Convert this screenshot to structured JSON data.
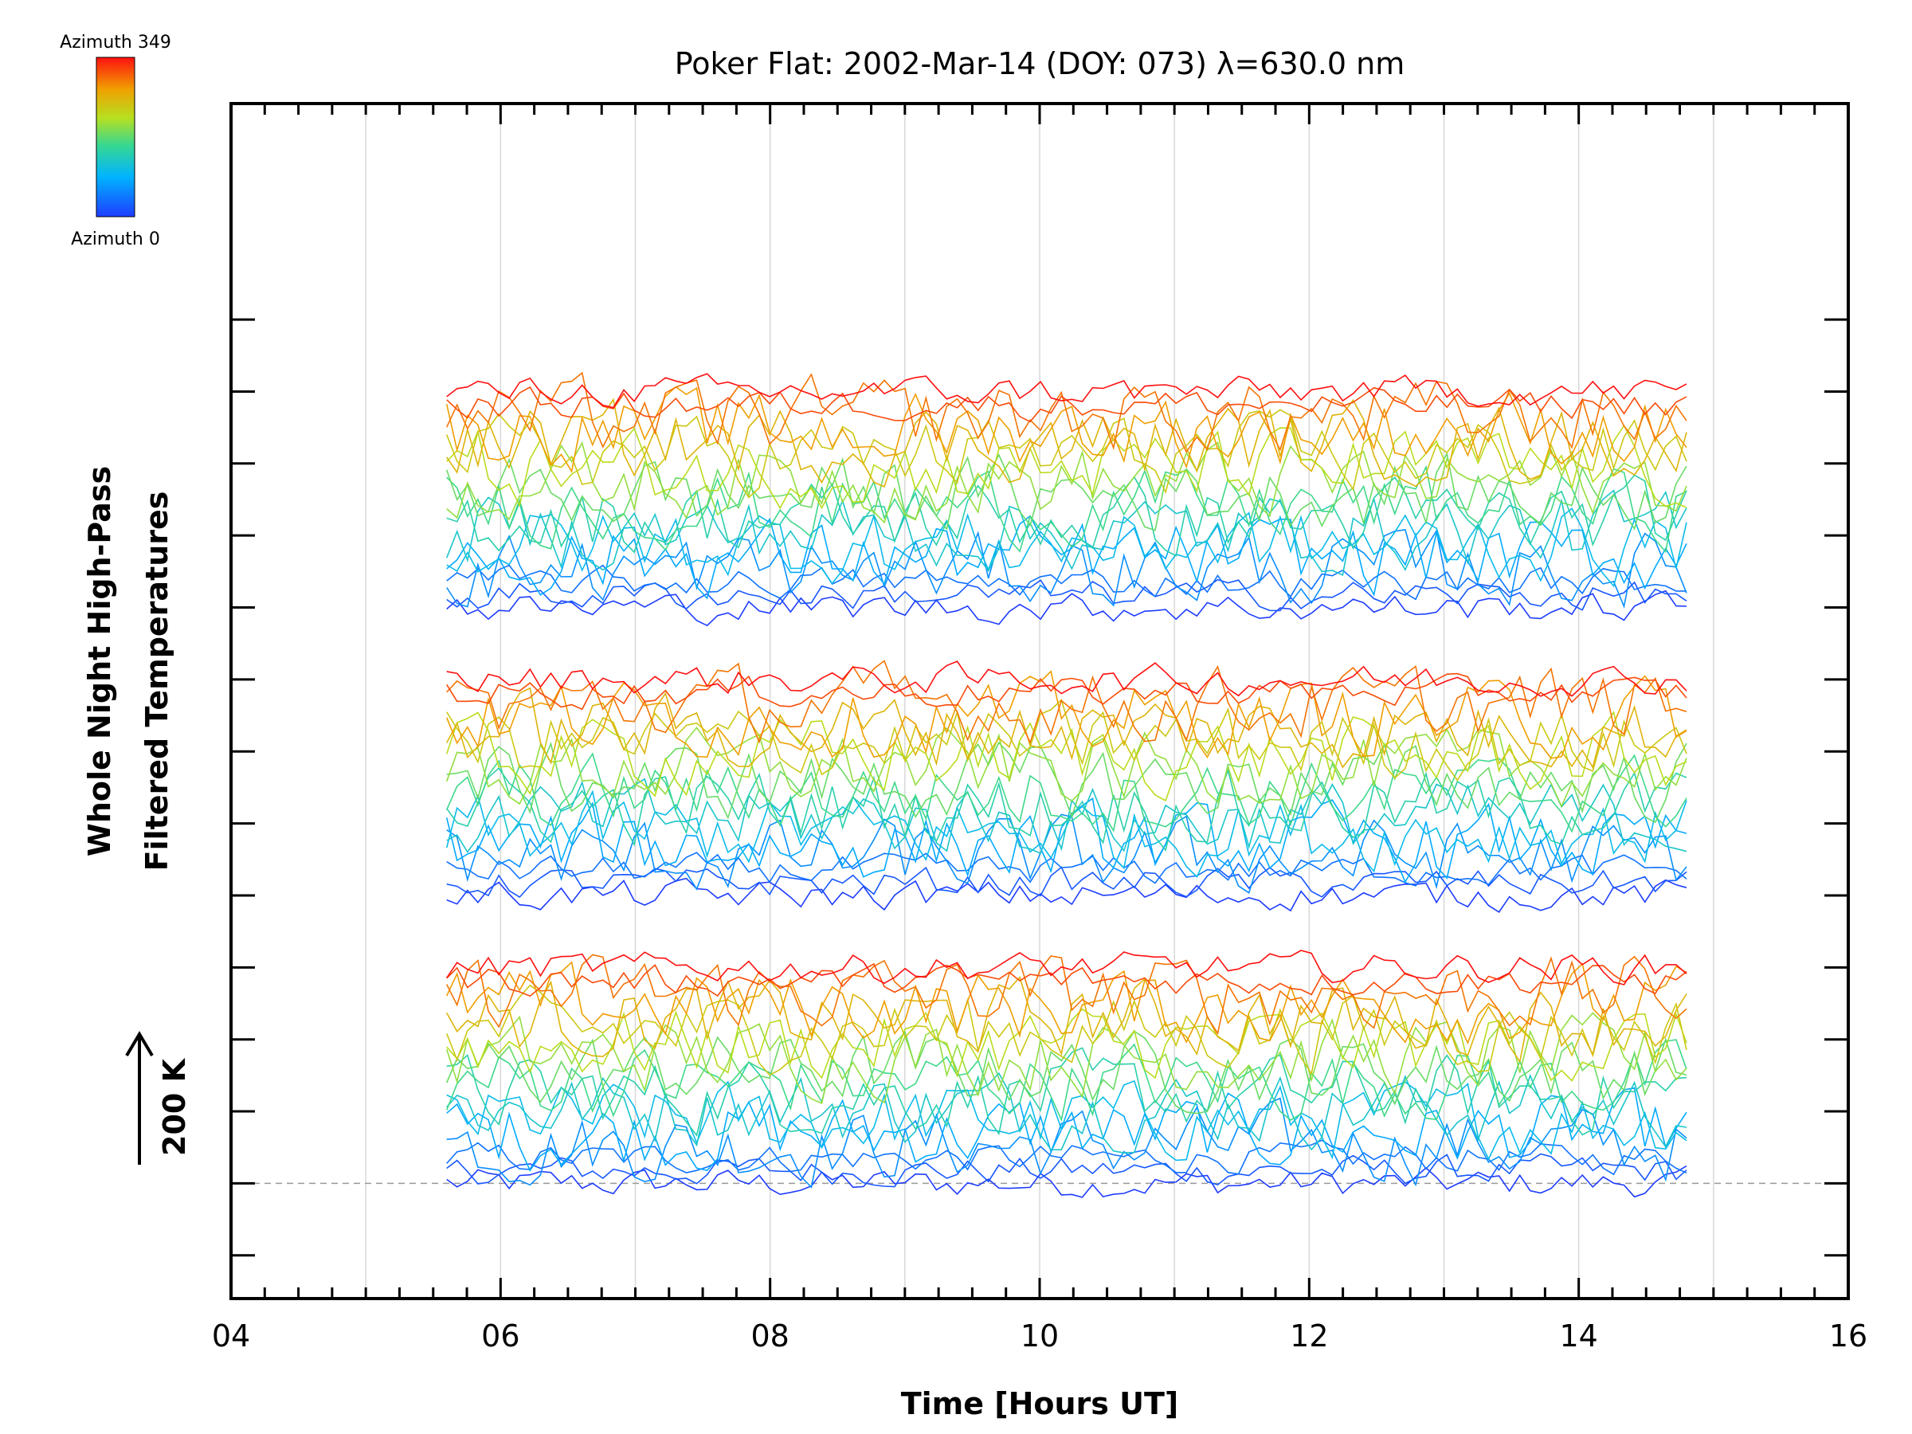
{
  "chart_data": {
    "type": "line",
    "title": "Poker Flat: 2002-Mar-14 (DOY: 073) λ=630.0 nm",
    "xlabel": "Time [Hours UT]",
    "ylabel_lines": [
      "Whole Night High-Pass",
      "Filtered Temperatures"
    ],
    "scale_bar_label": "200 K",
    "colorbar": {
      "top_label": "Azimuth  349",
      "bottom_label": "Azimuth  0",
      "colormap": "rainbow"
    },
    "xlim": [
      4,
      16
    ],
    "x_tick_labels": [
      {
        "value": 4,
        "label": "04"
      },
      {
        "value": 6,
        "label": "06"
      },
      {
        "value": 8,
        "label": "08"
      },
      {
        "value": 10,
        "label": "10"
      },
      {
        "value": 12,
        "label": "12"
      },
      {
        "value": 14,
        "label": "14"
      },
      {
        "value": 16,
        "label": "16"
      }
    ],
    "x_minor_step": 0.25,
    "x_grid": [
      5,
      6,
      7,
      8,
      9,
      10,
      11,
      12,
      13,
      14,
      15
    ],
    "y_units": "K",
    "y_offset_per_trace_group": 200,
    "ylim": [
      -160,
      1500
    ],
    "y_major_ticks": [
      -100,
      0,
      100,
      200,
      300,
      400,
      500,
      600,
      700,
      800,
      900,
      1000,
      1100,
      1200
    ],
    "baseline_dashed_y": 0,
    "time_range": [
      5.6,
      14.8
    ],
    "groups": [
      {
        "offset": 0,
        "azimuth_order": [
          0,
          20,
          40,
          60,
          80,
          100,
          120,
          140,
          160,
          180,
          200,
          220,
          240,
          260,
          280,
          300,
          320,
          349
        ]
      },
      {
        "offset": 400,
        "azimuth_order": [
          0,
          20,
          40,
          60,
          80,
          100,
          120,
          140,
          160,
          180,
          200,
          220,
          240,
          260,
          280,
          300,
          320,
          349
        ]
      },
      {
        "offset": 800,
        "azimuth_order": [
          0,
          20,
          40,
          60,
          80,
          100,
          120,
          140,
          160,
          180,
          200,
          220,
          240,
          260,
          280,
          300,
          320,
          349
        ]
      }
    ],
    "grid": true
  }
}
